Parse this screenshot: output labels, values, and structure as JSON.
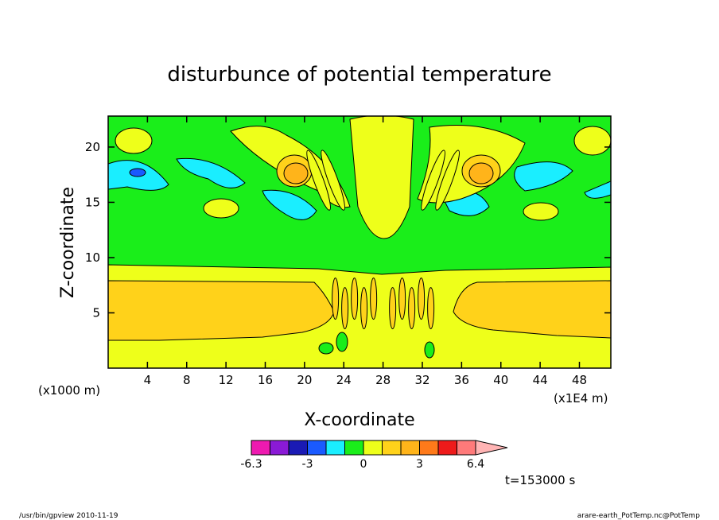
{
  "chart_data": {
    "type": "heatmap",
    "title": "disturbunce of potential temperature",
    "xlabel": "X-coordinate",
    "ylabel": "Z-coordinate",
    "x_unit_left": "(x1000 m)",
    "x_unit_right": "(x1E4 m)",
    "xlim": [
      0,
      51.2
    ],
    "ylim": [
      0,
      22.8
    ],
    "x_ticks": [
      4,
      8,
      12,
      16,
      20,
      24,
      28,
      32,
      36,
      40,
      44,
      48
    ],
    "y_ticks": [
      5,
      10,
      15,
      20
    ],
    "x_tick_labels": [
      "4",
      "8",
      "12",
      "16",
      "20",
      "24",
      "28",
      "32",
      "36",
      "40",
      "44",
      "48"
    ],
    "y_tick_labels": [
      "5",
      "10",
      "15",
      "20"
    ],
    "colorbar": {
      "colors": [
        "#ee1ab0",
        "#8a1ad6",
        "#1a1ab4",
        "#1a5aff",
        "#1aeeff",
        "#1aee1a",
        "#eeff1a",
        "#ffd21a",
        "#ffb41a",
        "#ff7a1a",
        "#ee1a1a",
        "#ff7a7a",
        "#ffb4b4"
      ],
      "tick_labels": [
        "-6.3",
        "-3",
        "0",
        "3",
        "6.4"
      ]
    },
    "time_label": "t=153000 s",
    "fields": {
      "base_band_low": {
        "z_from": 2.5,
        "z_to": 8.0,
        "value": 0.8
      },
      "low_layer_yellow": {
        "z_from": 0,
        "z_to": 2.5,
        "value": 0.2
      },
      "mid_layer_yellow": {
        "z_from": 8.0,
        "z_to": 9.5,
        "value": 0.2
      },
      "upper_green": {
        "z_from": 9.5,
        "z_to": 22.8,
        "value": -0.2
      },
      "hot_spots": [
        {
          "x": 18.5,
          "z": 17.5,
          "value": 2.0
        },
        {
          "x": 38.0,
          "z": 17.5,
          "value": 2.0
        }
      ],
      "cold_spots": [
        {
          "x": 3.0,
          "z": 17.8,
          "value": -2.0
        }
      ]
    }
  },
  "footer": {
    "left": "/usr/bin/gpview   2010-11-19",
    "right": "arare-earth_PotTemp.nc@PotTemp"
  }
}
